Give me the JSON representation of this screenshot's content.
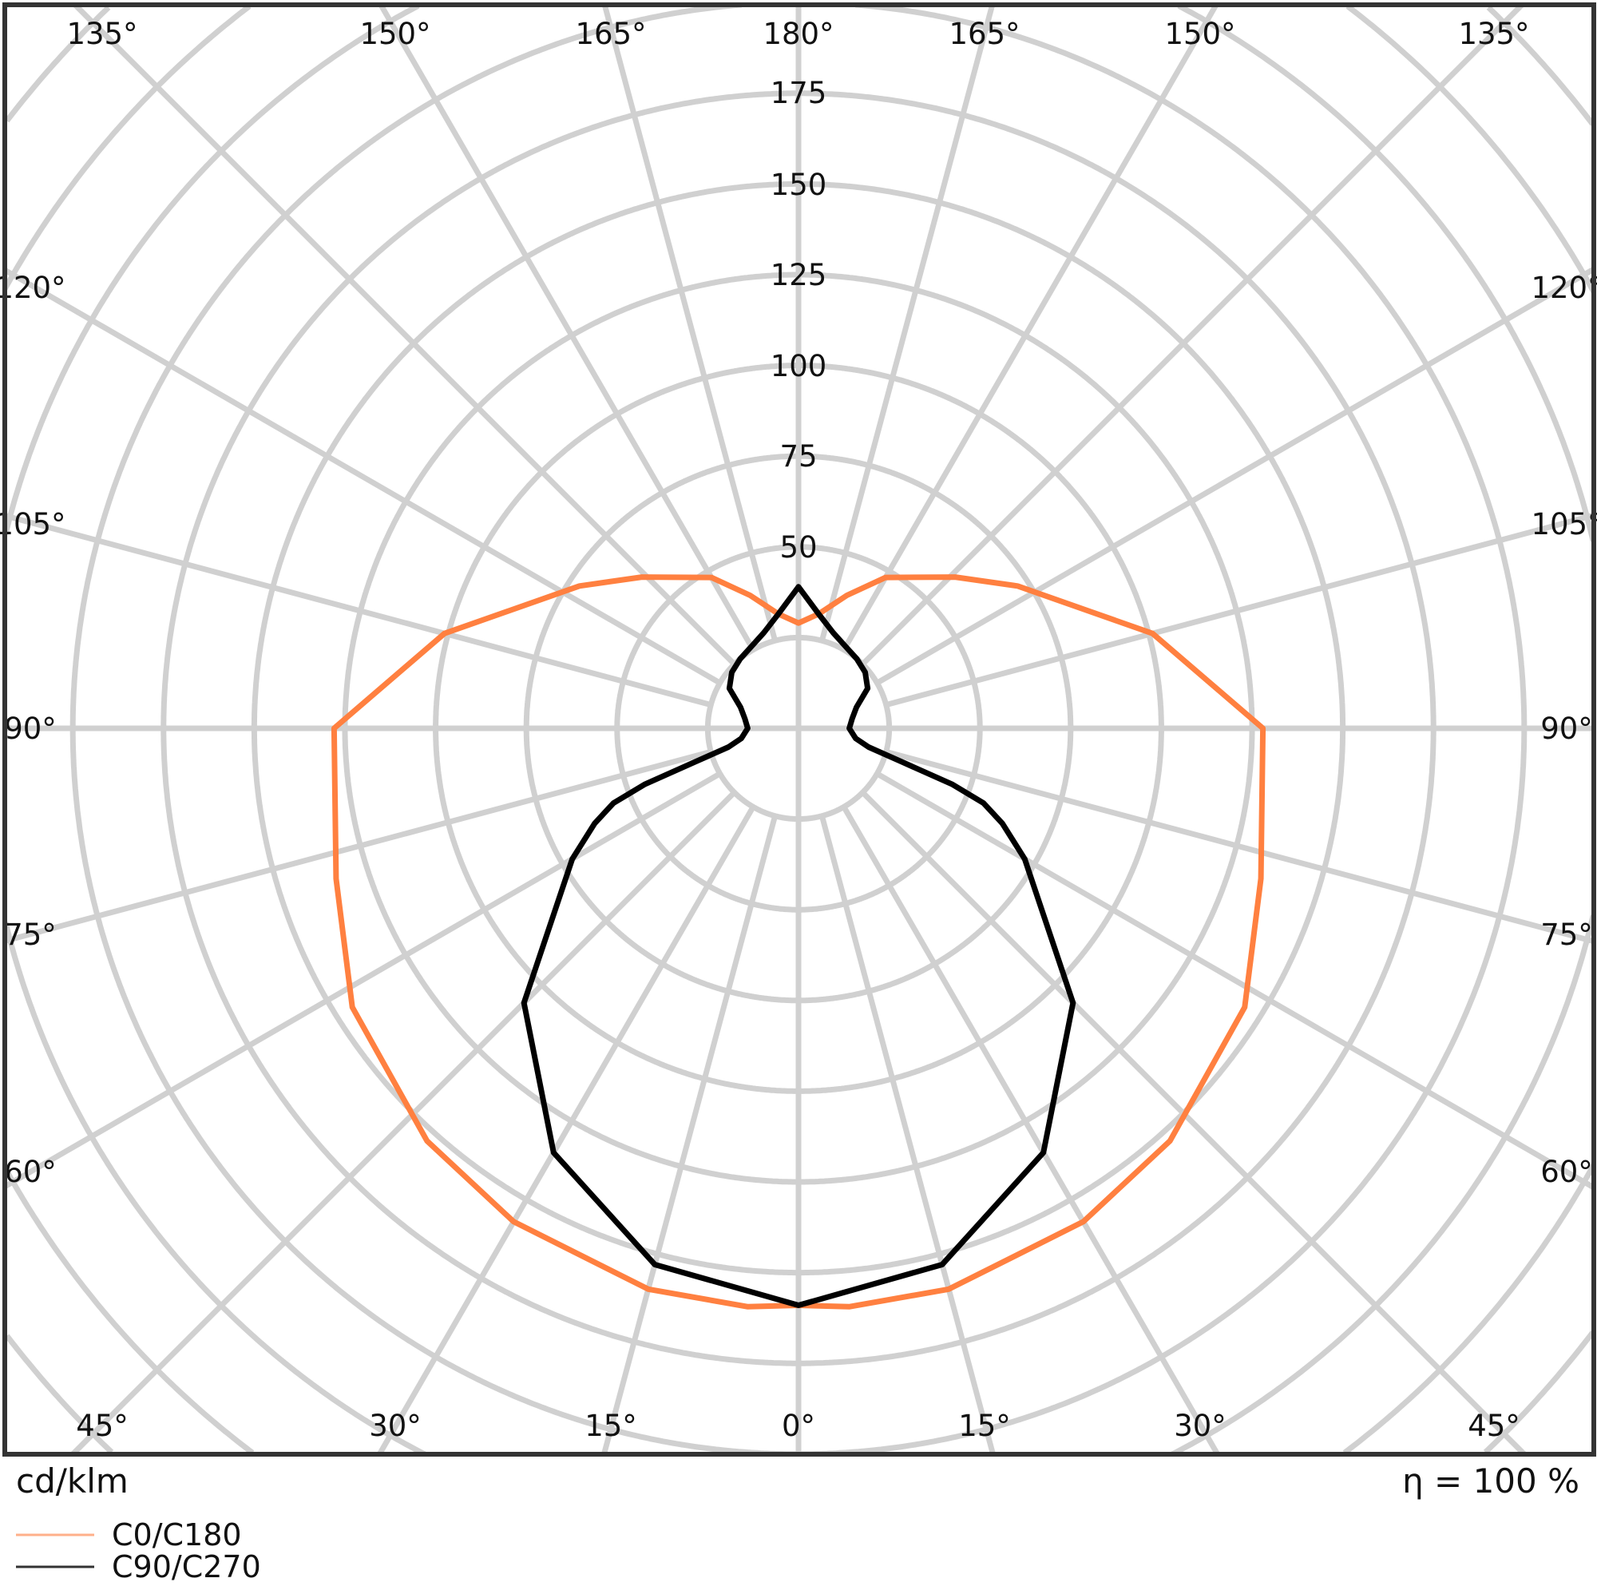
{
  "chart_data": {
    "type": "polar",
    "unit_label": "cd/klm",
    "efficiency_label": "η = 100 %",
    "radial_ticks": [
      50,
      75,
      100,
      125,
      150,
      175
    ],
    "radial_ring_step": 25,
    "angle_labels_top": [
      "135°",
      "150°",
      "165°",
      "180°",
      "165°",
      "150°",
      "135°"
    ],
    "angle_labels_bottom": [
      "45°",
      "30°",
      "15°",
      "0°",
      "15°",
      "30°",
      "45°"
    ],
    "angle_labels_side": [
      "120°",
      "105°",
      "90°",
      "75°",
      "60°"
    ],
    "grid": true,
    "legend_position": "bottom-left",
    "series": [
      {
        "name": "C0/C180",
        "color": "#ff8040",
        "angles": [
          0,
          5,
          15,
          30,
          42,
          58,
          72,
          90,
          105,
          123,
          134,
          150,
          160,
          170,
          180
        ],
        "values": [
          159,
          160,
          160,
          157,
          153,
          145,
          134,
          128,
          101,
          72,
          60,
          48,
          39,
          32,
          29
        ]
      },
      {
        "name": "C90/C270",
        "color": "#000000",
        "angles": [
          0,
          15,
          30,
          45,
          60,
          65,
          68,
          70,
          72,
          75,
          80,
          90,
          100,
          110,
          120,
          130,
          140,
          150,
          160,
          170,
          180
        ],
        "values": [
          159,
          153,
          135,
          107,
          72,
          62,
          55,
          45,
          30,
          20,
          16,
          14,
          15,
          17,
          22,
          24,
          25,
          26,
          28,
          32,
          39
        ]
      }
    ]
  }
}
